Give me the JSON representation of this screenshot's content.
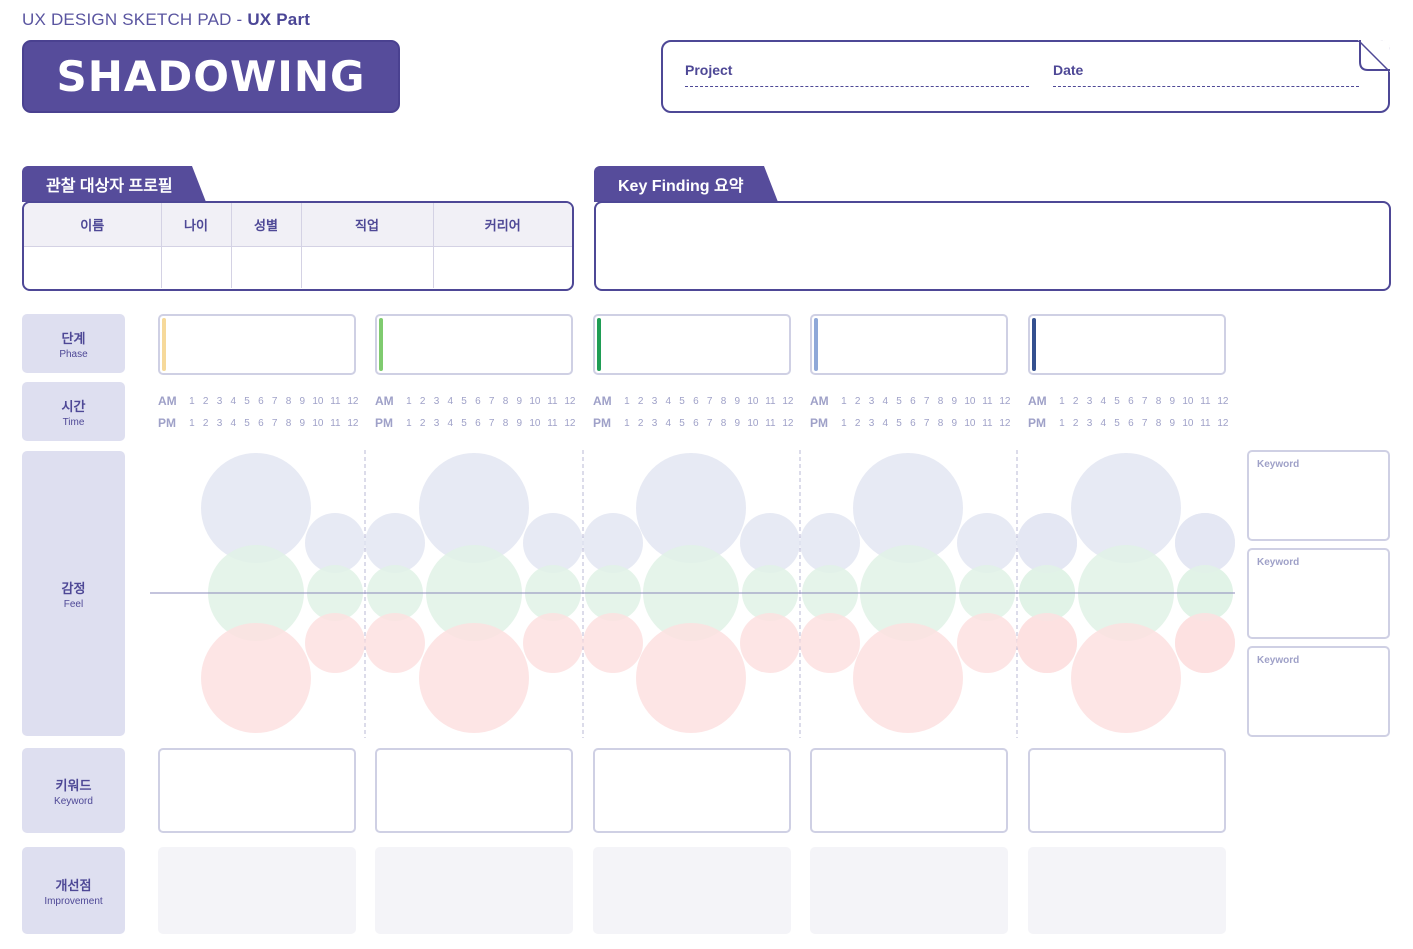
{
  "header": {
    "brand_prefix": "UX DESIGN SKETCH PAD - ",
    "brand_suffix": "UX Part",
    "title": "SHADOWING",
    "project_label": "Project",
    "date_label": "Date"
  },
  "profile": {
    "tab": "관찰 대상자 프로필",
    "columns": [
      "이름",
      "나이",
      "성별",
      "직업",
      "커리어"
    ]
  },
  "key_finding": {
    "tab": "Key Finding 요약"
  },
  "rows": {
    "phase": {
      "ko": "단계",
      "en": "Phase"
    },
    "time": {
      "ko": "시간",
      "en": "Time"
    },
    "feel": {
      "ko": "감정",
      "en": "Feel"
    },
    "keyword": {
      "ko": "키워드",
      "en": "Keyword"
    },
    "improvement": {
      "ko": "개선점",
      "en": "Improvement"
    }
  },
  "phase_colors": [
    "#f6d99a",
    "#7fcb6f",
    "#1f9d55",
    "#8fa8d8",
    "#34508f"
  ],
  "time": {
    "am": "AM",
    "pm": "PM",
    "hours": [
      "1",
      "2",
      "3",
      "4",
      "5",
      "6",
      "7",
      "8",
      "9",
      "10",
      "11",
      "12"
    ]
  },
  "emotion_colors": {
    "positive": "#e3e6f2",
    "neutral": "#e0f2e6",
    "negative": "#fde0e0"
  },
  "side_keywords": [
    "Keyword",
    "Keyword",
    "Keyword"
  ],
  "accent": "#564c9b"
}
